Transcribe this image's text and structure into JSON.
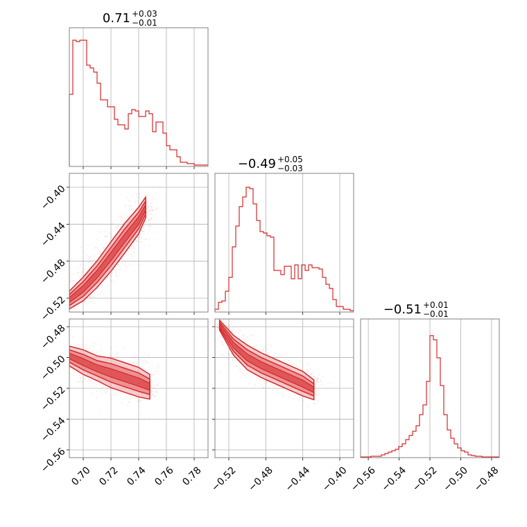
{
  "style": {
    "color": "#d62728",
    "fill_light": "#f2b6b8",
    "fill_mid": "#e8797c",
    "grid_color": "#b0b0b0",
    "frame_color": "#808080"
  },
  "chart_data": [
    {
      "type": "histogram",
      "panel": "diag-0",
      "xlim": [
        0.69,
        0.79
      ],
      "grid": true,
      "title": "0.71",
      "title_plus": "+0.03",
      "title_minus": "−0.01",
      "bin_start": 0.69,
      "bin_width": 0.0025,
      "counts": [
        0.52,
        0.91,
        0.9,
        0.91,
        0.91,
        0.73,
        0.71,
        0.68,
        0.6,
        0.48,
        0.48,
        0.43,
        0.43,
        0.34,
        0.3,
        0.3,
        0.27,
        0.38,
        0.41,
        0.4,
        0.36,
        0.36,
        0.4,
        0.38,
        0.25,
        0.32,
        0.32,
        0.24,
        0.15,
        0.12,
        0.12,
        0.07,
        0.03,
        0.03,
        0.02,
        0.02,
        0.01,
        0.01,
        0.01,
        0.01
      ]
    },
    {
      "type": "histogram",
      "panel": "diag-1",
      "xlim": [
        -0.535,
        -0.385
      ],
      "grid": true,
      "title": "−0.49",
      "title_plus": "+0.05",
      "title_minus": "−0.03",
      "bin_start": -0.535,
      "bin_width": 0.00375,
      "counts": [
        0.02,
        0.07,
        0.08,
        0.15,
        0.25,
        0.47,
        0.62,
        0.76,
        0.83,
        0.9,
        0.89,
        0.78,
        0.66,
        0.58,
        0.57,
        0.55,
        0.54,
        0.3,
        0.3,
        0.27,
        0.33,
        0.33,
        0.24,
        0.34,
        0.24,
        0.34,
        0.3,
        0.34,
        0.32,
        0.32,
        0.31,
        0.25,
        0.2,
        0.17,
        0.09,
        0.04,
        0.04,
        0.02,
        0.02,
        0.01
      ]
    },
    {
      "type": "histogram",
      "panel": "diag-2",
      "xlim": [
        -0.565,
        -0.475
      ],
      "grid": true,
      "title": "−0.51",
      "title_plus": "+0.01",
      "title_minus": "−0.01",
      "bin_start": -0.565,
      "bin_width": 0.00225,
      "counts": [
        0.005,
        0.005,
        0.005,
        0.01,
        0.01,
        0.01,
        0.02,
        0.03,
        0.04,
        0.05,
        0.06,
        0.08,
        0.1,
        0.13,
        0.16,
        0.19,
        0.23,
        0.31,
        0.38,
        0.55,
        0.88,
        0.85,
        0.72,
        0.52,
        0.31,
        0.2,
        0.14,
        0.1,
        0.07,
        0.05,
        0.04,
        0.02,
        0.015,
        0.01,
        0.01,
        0.005,
        0.005,
        0.005,
        0.005,
        0.005
      ]
    },
    {
      "type": "scatter-contour",
      "panel": "pair-1-0",
      "xlim": [
        0.69,
        0.79
      ],
      "ylim": [
        -0.535,
        -0.385
      ],
      "grid": true,
      "ridge": [
        [
          0.69,
          -0.522
        ],
        [
          0.7,
          -0.51
        ],
        [
          0.71,
          -0.494
        ],
        [
          0.72,
          -0.475
        ],
        [
          0.73,
          -0.455
        ],
        [
          0.74,
          -0.436
        ],
        [
          0.745,
          -0.422
        ]
      ],
      "widths": [
        0.006,
        0.008,
        0.009,
        0.01,
        0.01,
        0.009,
        0.007
      ],
      "yticks": [
        -0.52,
        -0.48,
        -0.44,
        -0.4
      ],
      "yticklabels": [
        "−0.52",
        "−0.48",
        "−0.44",
        "−0.40"
      ]
    },
    {
      "type": "scatter-contour",
      "panel": "pair-2-0",
      "xlim": [
        0.69,
        0.79
      ],
      "ylim": [
        -0.565,
        -0.475
      ],
      "grid": true,
      "ridge": [
        [
          0.69,
          -0.499
        ],
        [
          0.7,
          -0.503
        ],
        [
          0.71,
          -0.507
        ],
        [
          0.72,
          -0.51
        ],
        [
          0.73,
          -0.513
        ],
        [
          0.74,
          -0.516
        ],
        [
          0.748,
          -0.519
        ]
      ],
      "widths": [
        0.004,
        0.005,
        0.005,
        0.006,
        0.006,
        0.006,
        0.005
      ],
      "yticks": [
        -0.56,
        -0.54,
        -0.52,
        -0.5,
        -0.48
      ],
      "yticklabels": [
        "−0.56",
        "−0.54",
        "−0.52",
        "−0.50",
        "−0.48"
      ],
      "xticks": [
        0.7,
        0.72,
        0.74,
        0.76,
        0.78
      ],
      "xticklabels": [
        "0.70",
        "0.72",
        "0.74",
        "0.76",
        "0.78"
      ]
    },
    {
      "type": "scatter-contour",
      "panel": "pair-2-1",
      "xlim": [
        -0.535,
        -0.385
      ],
      "ylim": [
        -0.565,
        -0.475
      ],
      "grid": true,
      "ridge": [
        [
          -0.53,
          -0.479
        ],
        [
          -0.515,
          -0.492
        ],
        [
          -0.5,
          -0.5
        ],
        [
          -0.485,
          -0.505
        ],
        [
          -0.47,
          -0.509
        ],
        [
          -0.455,
          -0.513
        ],
        [
          -0.44,
          -0.517
        ],
        [
          -0.428,
          -0.521
        ]
      ],
      "widths": [
        0.002,
        0.004,
        0.005,
        0.005,
        0.005,
        0.005,
        0.005,
        0.004
      ],
      "xticks": [
        -0.52,
        -0.48,
        -0.44,
        -0.4
      ],
      "xticklabels": [
        "−0.52",
        "−0.48",
        "−0.44",
        "−0.40"
      ]
    },
    {
      "type": "axis",
      "panel": "diag-2-xaxis",
      "xticks": [
        -0.56,
        -0.54,
        -0.52,
        -0.5,
        -0.48
      ],
      "xticklabels": [
        "−0.56",
        "−0.54",
        "−0.52",
        "−0.50",
        "−0.48"
      ]
    }
  ]
}
